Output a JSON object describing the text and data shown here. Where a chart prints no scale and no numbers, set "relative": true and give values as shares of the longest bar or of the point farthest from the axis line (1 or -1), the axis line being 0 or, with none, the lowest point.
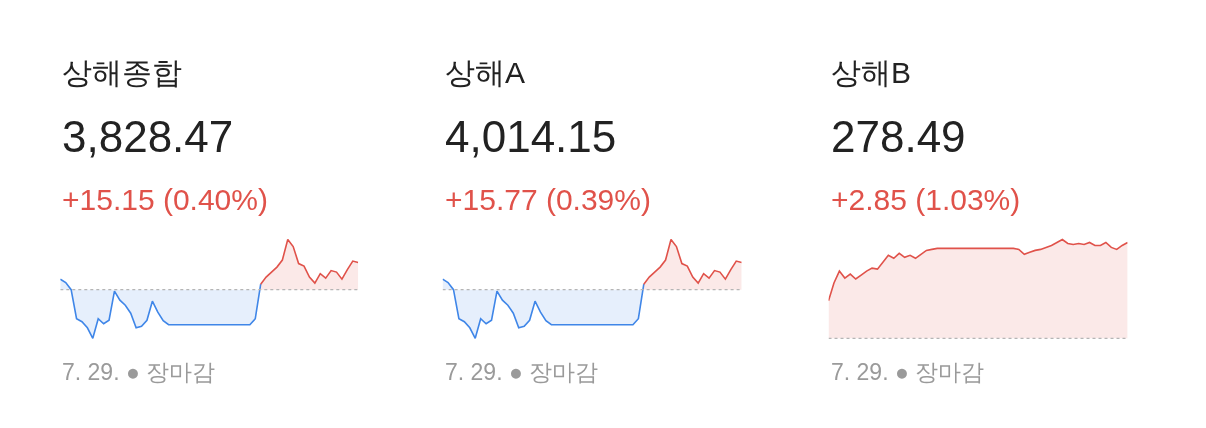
{
  "chart_data": [
    {
      "type": "area",
      "title": "상해종합",
      "subtitle": "3,828.47",
      "annotations": [
        "+15.15 (0.40%)",
        "7. 29. ● 장마감"
      ],
      "relative": true,
      "categories": [
        null,
        null,
        null,
        null,
        null,
        null,
        null,
        null,
        null,
        null,
        null,
        null,
        null,
        null,
        null,
        null,
        null,
        null,
        null,
        null,
        null,
        null,
        null,
        null,
        null,
        null,
        null,
        null,
        null,
        null,
        null,
        null,
        null,
        null,
        null,
        null,
        null,
        null,
        null,
        null,
        null,
        null,
        null,
        null,
        null,
        null,
        null,
        null,
        null,
        null,
        null,
        null,
        null,
        null,
        null,
        null
      ],
      "series": [
        {
          "color": "#3f86e8",
          "values": [
            0.21,
            0.14,
            0,
            -0.58,
            -0.64,
            -0.76,
            -0.97,
            -0.58,
            -0.68,
            -0.61,
            -0.03,
            -0.21,
            -0.31,
            -0.47,
            -0.76,
            -0.73,
            -0.61,
            -0.23,
            -0.45,
            -0.62,
            -0.7,
            -0.7,
            -0.7,
            -0.7,
            -0.7,
            -0.7,
            -0.7,
            -0.7,
            -0.7,
            -0.7,
            -0.7,
            -0.7,
            -0.7,
            -0.7,
            -0.7,
            -0.7,
            -0.58,
            0.11,
            null,
            null,
            null,
            null,
            null,
            null,
            null,
            null,
            null,
            null,
            null,
            null,
            null,
            null,
            null,
            null,
            null,
            null
          ]
        },
        {
          "color": "#e0524a",
          "values": [
            null,
            null,
            null,
            null,
            null,
            null,
            null,
            null,
            null,
            null,
            null,
            null,
            null,
            null,
            null,
            null,
            null,
            null,
            null,
            null,
            null,
            null,
            null,
            null,
            null,
            null,
            null,
            null,
            null,
            null,
            null,
            null,
            null,
            null,
            null,
            null,
            null,
            0.11,
            0.25,
            0.35,
            0.45,
            0.59,
            1.0,
            0.86,
            0.52,
            0.47,
            0.25,
            0.13,
            0.32,
            0.23,
            0.38,
            0.35,
            0.21,
            0.4,
            0.57,
            0.54
          ]
        }
      ],
      "ref_lines": [
        {
          "axis": "y",
          "value": 0,
          "color": "#b5b5b5",
          "line_style": "dotted"
        }
      ]
    },
    {
      "type": "area",
      "title": "상해A",
      "subtitle": "4,014.15",
      "annotations": [
        "+15.77 (0.39%)",
        "7. 29. ● 장마감"
      ],
      "relative": true,
      "categories": [
        null,
        null,
        null,
        null,
        null,
        null,
        null,
        null,
        null,
        null,
        null,
        null,
        null,
        null,
        null,
        null,
        null,
        null,
        null,
        null,
        null,
        null,
        null,
        null,
        null,
        null,
        null,
        null,
        null,
        null,
        null,
        null,
        null,
        null,
        null,
        null,
        null,
        null,
        null,
        null,
        null,
        null,
        null,
        null,
        null,
        null,
        null,
        null,
        null,
        null,
        null,
        null,
        null,
        null,
        null,
        null
      ],
      "series": [
        {
          "color": "#3f86e8",
          "values": [
            0.21,
            0.14,
            0,
            -0.58,
            -0.64,
            -0.76,
            -0.97,
            -0.58,
            -0.68,
            -0.61,
            -0.03,
            -0.21,
            -0.31,
            -0.47,
            -0.76,
            -0.73,
            -0.61,
            -0.23,
            -0.45,
            -0.62,
            -0.7,
            -0.7,
            -0.7,
            -0.7,
            -0.7,
            -0.7,
            -0.7,
            -0.7,
            -0.7,
            -0.7,
            -0.7,
            -0.7,
            -0.7,
            -0.7,
            -0.7,
            -0.7,
            -0.58,
            0.11,
            null,
            null,
            null,
            null,
            null,
            null,
            null,
            null,
            null,
            null,
            null,
            null,
            null,
            null,
            null,
            null,
            null,
            null
          ]
        },
        {
          "color": "#e0524a",
          "values": [
            null,
            null,
            null,
            null,
            null,
            null,
            null,
            null,
            null,
            null,
            null,
            null,
            null,
            null,
            null,
            null,
            null,
            null,
            null,
            null,
            null,
            null,
            null,
            null,
            null,
            null,
            null,
            null,
            null,
            null,
            null,
            null,
            null,
            null,
            null,
            null,
            null,
            0.11,
            0.25,
            0.35,
            0.45,
            0.59,
            1.0,
            0.86,
            0.52,
            0.47,
            0.25,
            0.13,
            0.32,
            0.23,
            0.38,
            0.35,
            0.21,
            0.4,
            0.57,
            0.54
          ]
        }
      ],
      "ref_lines": [
        {
          "axis": "y",
          "value": 0,
          "color": "#b5b5b5",
          "line_style": "dotted"
        }
      ]
    },
    {
      "type": "area",
      "title": "상해B",
      "subtitle": "278.49",
      "annotations": [
        "+2.85 (1.03%)",
        "7. 29. ● 장마감"
      ],
      "relative": true,
      "categories": [
        null,
        null,
        null,
        null,
        null,
        null,
        null,
        null,
        null,
        null,
        null,
        null,
        null,
        null,
        null,
        null,
        null,
        null,
        null,
        null,
        null,
        null,
        null,
        null,
        null,
        null,
        null,
        null,
        null,
        null,
        null,
        null,
        null,
        null,
        null,
        null,
        null,
        null,
        null,
        null,
        null,
        null,
        null,
        null,
        null,
        null,
        null,
        null,
        null,
        null,
        null,
        null,
        null,
        null,
        null,
        null
      ],
      "series": [
        {
          "color": "#e0524a",
          "values": [
            0.38,
            0.56,
            0.68,
            0.61,
            0.65,
            0.6,
            0.64,
            0.68,
            0.71,
            0.7,
            0.77,
            0.84,
            0.81,
            0.86,
            0.82,
            0.84,
            0.81,
            0.85,
            0.89,
            0.9,
            0.91,
            0.91,
            0.91,
            0.91,
            0.91,
            0.91,
            0.91,
            0.91,
            0.91,
            0.91,
            0.91,
            0.91,
            0.91,
            0.91,
            0.91,
            0.9,
            0.85,
            0.87,
            0.89,
            0.9,
            0.92,
            0.94,
            0.97,
            1.0,
            0.96,
            0.95,
            0.96,
            0.95,
            0.97,
            0.94,
            0.94,
            0.97,
            0.92,
            0.9,
            0.94,
            0.97
          ]
        }
      ],
      "ref_lines": [
        {
          "axis": "y",
          "value": 0,
          "color": "#b5b5b5",
          "line_style": "dotted"
        }
      ]
    }
  ]
}
